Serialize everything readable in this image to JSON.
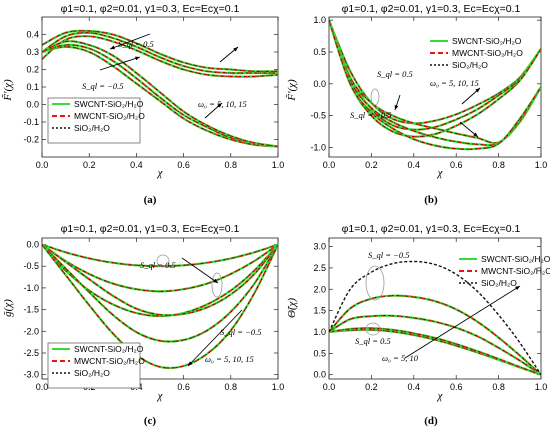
{
  "figure": {
    "panels": [
      {
        "id": "a",
        "label": "(a)",
        "title": "φ1=0.1, φ2=0.01, γ1=0.3, Ec=Ecχ=0.1",
        "ylabel": "F̃'(χ)",
        "xlabel": "χ"
      },
      {
        "id": "b",
        "label": "(b)",
        "title": "φ1=0.1, φ2=0.01, γ1=0.3, Ec=Ecχ=0.1",
        "ylabel": "F̃'(χ)",
        "xlabel": "χ"
      },
      {
        "id": "c",
        "label": "(c)",
        "title": "φ1=0.1, φ2=0.01, γ1=0.3, Ec=Ecχ=0.1",
        "ylabel": "g̃(χ)",
        "xlabel": "χ"
      },
      {
        "id": "d",
        "label": "(d)",
        "title": "φ1=0.1, φ2=0.01, γ1=0.3, Ec=Ecχ=0.1",
        "ylabel": "Θ̃(χ)",
        "xlabel": "χ"
      }
    ]
  },
  "chart_data": [
    {
      "panel": "a",
      "type": "line",
      "xlim": [
        0,
        1
      ],
      "ylim": [
        -0.3,
        0.5
      ],
      "xticks": [
        "0.0",
        "0.2",
        "0.4",
        "0.6",
        "0.8",
        "1.0"
      ],
      "yticks": [
        "-0.2",
        "-0.1",
        "0.0",
        "0.1",
        "0.2",
        "0.3",
        "0.4"
      ],
      "ytick_values": [
        -0.2,
        -0.1,
        0.0,
        0.1,
        0.2,
        0.3,
        0.4
      ],
      "grid": false,
      "legend": {
        "position": "bottom-left",
        "entries": [
          {
            "label": "SWCNT-SiO₂/H₂O",
            "color": "#33dd33",
            "dash": ""
          },
          {
            "label": "MWCNT-SiO₂/H₂O",
            "color": "#ee1111",
            "dash": "5,3"
          },
          {
            "label": "SiO₂/H₂O",
            "color": "#111111",
            "dash": "2,2"
          }
        ]
      },
      "annotations": [
        {
          "text": "S_ql = 0.5"
        },
        {
          "text": "S_ql = −0.5"
        },
        {
          "text": "ω₀ = 5, 10, 15"
        }
      ],
      "x": [
        0,
        0.1,
        0.2,
        0.3,
        0.4,
        0.5,
        0.6,
        0.7,
        0.8,
        0.9,
        1.0
      ],
      "series": [
        {
          "group": "Sql=0.5",
          "values": [
            0.26,
            0.37,
            0.39,
            0.36,
            0.31,
            0.25,
            0.2,
            0.17,
            0.16,
            0.16,
            0.17
          ]
        },
        {
          "group": "Sql=0.5",
          "values": [
            0.3,
            0.39,
            0.41,
            0.38,
            0.33,
            0.27,
            0.22,
            0.19,
            0.18,
            0.18,
            0.18
          ]
        },
        {
          "group": "Sql=0.5",
          "values": [
            0.34,
            0.41,
            0.42,
            0.4,
            0.35,
            0.29,
            0.24,
            0.21,
            0.2,
            0.19,
            0.19
          ]
        },
        {
          "group": "Sql=-0.5",
          "values": [
            0.3,
            0.33,
            0.3,
            0.22,
            0.12,
            0.02,
            -0.08,
            -0.15,
            -0.2,
            -0.23,
            -0.24
          ]
        },
        {
          "group": "Sql=-0.5",
          "values": [
            0.3,
            0.34,
            0.32,
            0.25,
            0.15,
            0.04,
            -0.06,
            -0.13,
            -0.19,
            -0.22,
            -0.24
          ]
        },
        {
          "group": "Sql=-0.5",
          "values": [
            0.3,
            0.36,
            0.34,
            0.28,
            0.18,
            0.07,
            -0.04,
            -0.12,
            -0.18,
            -0.22,
            -0.24
          ]
        }
      ]
    },
    {
      "panel": "b",
      "type": "line",
      "xlim": [
        0,
        1
      ],
      "ylim": [
        -1.15,
        1.05
      ],
      "xticks": [
        "0.0",
        "0.2",
        "0.4",
        "0.6",
        "0.8",
        "1.0"
      ],
      "yticks": [
        "-1.0",
        "-0.5",
        "0.0",
        "0.5",
        "1.0"
      ],
      "ytick_values": [
        -1.0,
        -0.5,
        0.0,
        0.5,
        1.0
      ],
      "grid": false,
      "legend": {
        "position": "top-right",
        "entries": [
          {
            "label": "SWCNT-SiO₂/H₂O",
            "color": "#33dd33",
            "dash": ""
          },
          {
            "label": "MWCNT-SiO₂/H₂O",
            "color": "#ee1111",
            "dash": "5,3"
          },
          {
            "label": "SiO₂/H₂O",
            "color": "#111111",
            "dash": "2,2"
          }
        ]
      },
      "annotations": [
        {
          "text": "S_ql = 0.5"
        },
        {
          "text": "S_ql = −0.5"
        },
        {
          "text": "ω₀ = 5, 10, 15"
        }
      ],
      "x": [
        0,
        0.1,
        0.2,
        0.3,
        0.4,
        0.5,
        0.6,
        0.7,
        0.8,
        0.9,
        1.0
      ],
      "series": [
        {
          "group": "Sql=0.5",
          "values": [
            1.0,
            0.2,
            -0.3,
            -0.55,
            -0.62,
            -0.58,
            -0.48,
            -0.33,
            -0.15,
            0.1,
            0.55
          ]
        },
        {
          "group": "Sql=0.5",
          "values": [
            1.0,
            0.1,
            -0.4,
            -0.65,
            -0.72,
            -0.68,
            -0.56,
            -0.4,
            -0.18,
            0.08,
            0.55
          ]
        },
        {
          "group": "Sql=0.5",
          "values": [
            1.0,
            0.0,
            -0.5,
            -0.75,
            -0.83,
            -0.79,
            -0.66,
            -0.48,
            -0.24,
            0.05,
            0.55
          ]
        },
        {
          "group": "Sql=-0.5",
          "values": [
            1.0,
            0.1,
            -0.3,
            -0.5,
            -0.62,
            -0.7,
            -0.78,
            -0.85,
            -0.92,
            -0.6,
            -0.05
          ]
        },
        {
          "group": "Sql=-0.5",
          "values": [
            1.0,
            0.05,
            -0.38,
            -0.6,
            -0.74,
            -0.84,
            -0.91,
            -0.95,
            -0.93,
            -0.58,
            -0.05
          ]
        },
        {
          "group": "Sql=-0.5",
          "values": [
            1.0,
            0.0,
            -0.45,
            -0.7,
            -0.87,
            -0.97,
            -1.02,
            -1.02,
            -0.94,
            -0.55,
            -0.05
          ]
        }
      ]
    },
    {
      "panel": "c",
      "type": "line",
      "xlim": [
        0,
        1
      ],
      "ylim": [
        -3.1,
        0.15
      ],
      "xticks": [
        "0.0",
        "0.2",
        "0.4",
        "0.6",
        "0.8",
        "1.0"
      ],
      "yticks": [
        "-3.0",
        "-2.5",
        "-2.0",
        "-1.5",
        "-1.0",
        "-0.5",
        "0.0"
      ],
      "ytick_values": [
        -3.0,
        -2.5,
        -2.0,
        -1.5,
        -1.0,
        -0.5,
        0.0
      ],
      "grid": false,
      "legend": {
        "position": "bottom-left",
        "entries": [
          {
            "label": "SWCNT-SiO₂/H₂O",
            "color": "#33dd33",
            "dash": ""
          },
          {
            "label": "MWCNT-SiO₂/H₂O",
            "color": "#ee1111",
            "dash": "5,3"
          },
          {
            "label": "SiO₂/H₂O",
            "color": "#111111",
            "dash": "2,2"
          }
        ]
      },
      "annotations": [
        {
          "text": "S_ql = 0.5"
        },
        {
          "text": "S_ql = −0.5"
        },
        {
          "text": "ω₀ = 5, 10, 15"
        }
      ],
      "x": [
        0,
        0.1,
        0.2,
        0.3,
        0.4,
        0.5,
        0.6,
        0.7,
        0.8,
        0.9,
        1.0
      ],
      "series": [
        {
          "group": "Sql=0.5",
          "values": [
            0,
            -0.18,
            -0.32,
            -0.42,
            -0.48,
            -0.5,
            -0.48,
            -0.42,
            -0.32,
            -0.18,
            0
          ]
        },
        {
          "group": "Sql=0.5",
          "values": [
            0,
            -0.38,
            -0.68,
            -0.9,
            -1.03,
            -1.08,
            -1.03,
            -0.9,
            -0.68,
            -0.38,
            0
          ]
        },
        {
          "group": "Sql=0.5",
          "values": [
            0,
            -0.6,
            -1.06,
            -1.38,
            -1.58,
            -1.65,
            -1.58,
            -1.38,
            -1.06,
            -0.6,
            0
          ]
        },
        {
          "group": "Sql=-0.5",
          "values": [
            0,
            -0.4,
            -0.8,
            -1.18,
            -1.48,
            -1.62,
            -1.6,
            -1.45,
            -1.15,
            -0.68,
            0
          ]
        },
        {
          "group": "Sql=-0.5",
          "values": [
            0,
            -0.55,
            -1.1,
            -1.62,
            -2.02,
            -2.22,
            -2.2,
            -1.98,
            -1.55,
            -0.9,
            0
          ]
        },
        {
          "group": "Sql=-0.5",
          "values": [
            0,
            -0.7,
            -1.4,
            -2.05,
            -2.55,
            -2.82,
            -2.8,
            -2.52,
            -1.98,
            -1.12,
            0
          ]
        }
      ]
    },
    {
      "panel": "d",
      "type": "line",
      "xlim": [
        0,
        1
      ],
      "ylim": [
        -0.1,
        3.2
      ],
      "xticks": [
        "0.0",
        "0.2",
        "0.4",
        "0.6",
        "0.8",
        "1.0"
      ],
      "yticks": [
        "0.0",
        "0.5",
        "1.0",
        "1.5",
        "2.0",
        "2.5",
        "3.0"
      ],
      "ytick_values": [
        0.0,
        0.5,
        1.0,
        1.5,
        2.0,
        2.5,
        3.0
      ],
      "grid": false,
      "legend": {
        "position": "top-right",
        "entries": [
          {
            "label": "SWCNT-SiO₂/H₂O",
            "color": "#33dd33",
            "dash": ""
          },
          {
            "label": "MWCNT-SiO₂/H₂O",
            "color": "#ee1111",
            "dash": "5,3"
          },
          {
            "label": "SiO₂/H₂O",
            "color": "#111111",
            "dash": "2,2"
          }
        ]
      },
      "annotations": [
        {
          "text": "S_ql = −0.5"
        },
        {
          "text": "S_ql = 0.5"
        },
        {
          "text": "ω₀ = 5, 10"
        }
      ],
      "x": [
        0,
        0.1,
        0.2,
        0.3,
        0.4,
        0.5,
        0.6,
        0.7,
        0.8,
        0.9,
        1.0
      ],
      "series": [
        {
          "group": "Sql=0.5",
          "values": [
            1.0,
            1.04,
            1.05,
            1.01,
            0.93,
            0.82,
            0.68,
            0.52,
            0.35,
            0.17,
            0.0
          ]
        },
        {
          "group": "Sql=0.5",
          "values": [
            1.0,
            1.07,
            1.09,
            1.05,
            0.97,
            0.86,
            0.72,
            0.55,
            0.37,
            0.18,
            0.0
          ]
        },
        {
          "group": "Sql=-0.5",
          "values": [
            1.0,
            1.3,
            1.37,
            1.38,
            1.33,
            1.24,
            1.1,
            0.9,
            0.63,
            0.33,
            0.0
          ]
        },
        {
          "group": "Sql=-0.5",
          "values": [
            1.0,
            1.55,
            1.78,
            1.85,
            1.82,
            1.72,
            1.53,
            1.24,
            0.87,
            0.45,
            0.0
          ]
        },
        {
          "group": "Sql=-0.5",
          "values": [
            1.0,
            2.0,
            2.4,
            2.6,
            2.65,
            2.58,
            2.35,
            1.95,
            1.4,
            0.75,
            0.0
          ],
          "black_only": true
        }
      ]
    }
  ]
}
